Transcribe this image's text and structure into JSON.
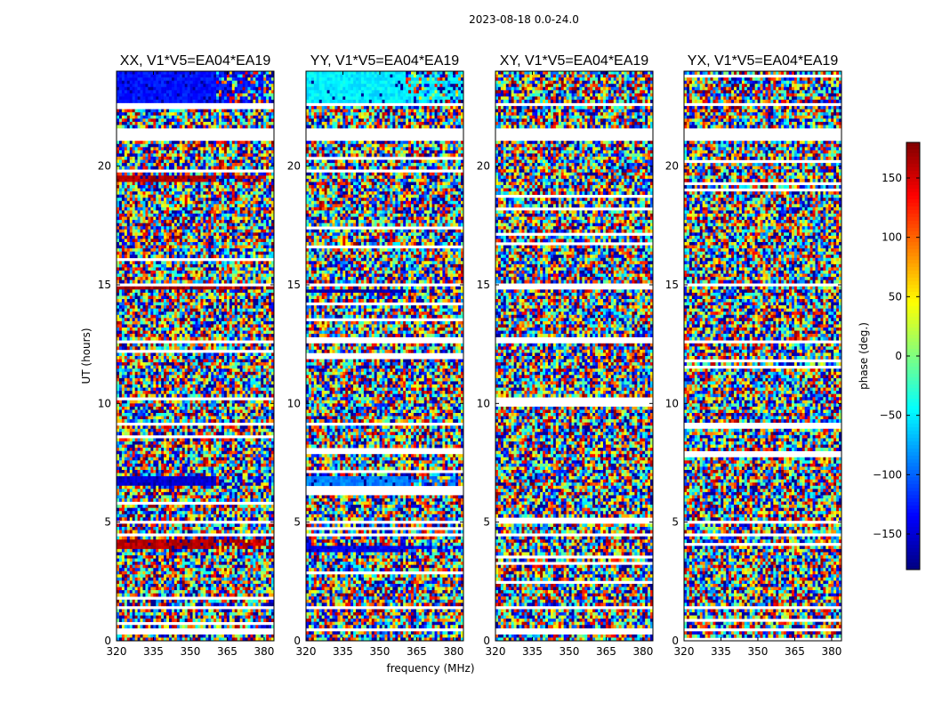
{
  "chart_data": {
    "type": "heatmap",
    "suptitle": "2023-08-18 0.0-24.0",
    "xlabel": "frequency (MHz)",
    "ylabel": "UT (hours)",
    "xlim": [
      320,
      384
    ],
    "ylim": [
      0,
      24
    ],
    "xticks": [
      320,
      335,
      350,
      365,
      380
    ],
    "yticks": [
      0,
      5,
      10,
      15,
      20
    ],
    "panels": [
      {
        "title": "XX, V1*V5=EA04*EA19",
        "polarization": "XX"
      },
      {
        "title": "YY, V1*V5=EA04*EA19",
        "polarization": "YY"
      },
      {
        "title": "XY, V1*V5=EA04*EA19",
        "polarization": "XY"
      },
      {
        "title": "YX, V1*V5=EA04*EA19",
        "polarization": "YX"
      }
    ],
    "colorbar": {
      "label": "phase (deg.)",
      "range": [
        -180,
        180
      ],
      "ticks": [
        -150,
        -100,
        -50,
        0,
        50,
        100,
        150
      ],
      "tick_labels": [
        "−150",
        "−100",
        "−50",
        "0",
        "50",
        "100",
        "150"
      ],
      "colormap": "jet"
    },
    "blank_ut_intervals": [
      [
        0.45,
        0.55
      ],
      [
        1.35,
        1.5
      ],
      [
        3.55,
        3.62
      ],
      [
        4.35,
        4.6
      ],
      [
        4.95,
        5.05
      ],
      [
        9.3,
        9.38
      ],
      [
        12.55,
        12.62
      ],
      [
        14.92,
        15.02
      ],
      [
        19.3,
        19.38
      ],
      [
        21.05,
        21.55
      ],
      [
        22.5,
        22.62
      ]
    ],
    "coherent_bands": [
      {
        "panel": 0,
        "ut": [
          22.6,
          24.0
        ],
        "phase": -130
      },
      {
        "panel": 0,
        "ut": [
          6.5,
          6.9
        ],
        "phase": -150
      },
      {
        "panel": 0,
        "ut": [
          3.9,
          4.3
        ],
        "phase": 160
      },
      {
        "panel": 0,
        "ut": [
          14.85,
          15.0
        ],
        "phase": 170
      },
      {
        "panel": 0,
        "ut": [
          19.4,
          19.55
        ],
        "phase": 165
      },
      {
        "panel": 1,
        "ut": [
          22.6,
          24.0
        ],
        "phase": -50
      },
      {
        "panel": 1,
        "ut": [
          6.5,
          6.9
        ],
        "phase": -90
      },
      {
        "panel": 1,
        "ut": [
          14.7,
          14.85
        ],
        "phase": -160
      },
      {
        "panel": 1,
        "ut": [
          3.8,
          4.0
        ],
        "phase": -140
      }
    ]
  }
}
